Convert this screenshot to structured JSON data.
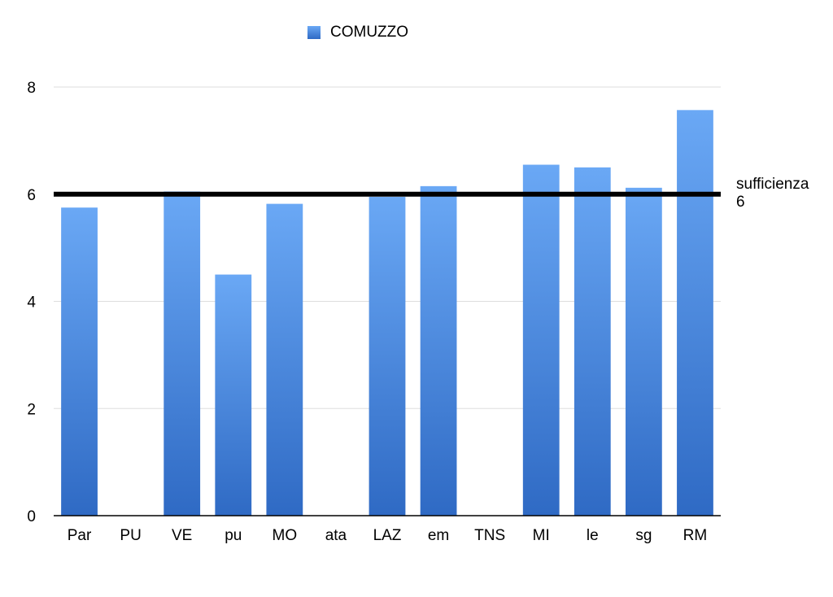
{
  "chart_data": {
    "type": "bar",
    "categories": [
      "Par",
      "PU",
      "VE",
      "pu",
      "MO",
      "ata",
      "LAZ",
      "em",
      "TNS",
      "MI",
      "le",
      "sg",
      "RM"
    ],
    "series": [
      {
        "name": "COMUZZO",
        "values": [
          5.75,
          null,
          6.05,
          4.5,
          5.82,
          null,
          5.95,
          6.15,
          null,
          6.55,
          6.5,
          6.12,
          7.57
        ]
      }
    ],
    "ylim": [
      0,
      8
    ],
    "yticks": [
      0,
      2,
      4,
      6,
      8
    ],
    "grid": true,
    "legend_position": "top-center",
    "reference_line": {
      "value": 6,
      "label": "sufficienza",
      "value_label": "6"
    },
    "colors": {
      "bar_top": "#6aa8f5",
      "bar_bottom": "#2f6ac4",
      "grid": "#dddddd",
      "axis": "#000000",
      "reference": "#000000"
    }
  }
}
